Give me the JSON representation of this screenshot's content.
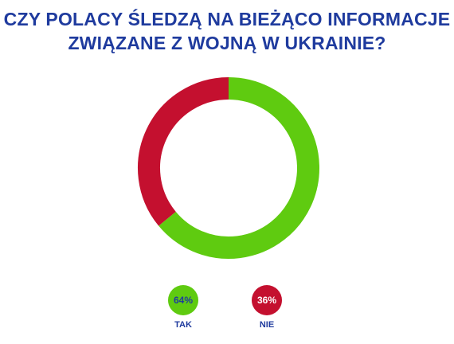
{
  "title": {
    "line1": "CZY POLACY ŚLEDZĄ NA BIEŻĄCO INFORMACJE",
    "line2": "ZWIĄZANE Z WOJNĄ W UKRAINIE?"
  },
  "colors": {
    "title": "#1f3b9e",
    "tak": "#5fcb10",
    "nie": "#c4102f",
    "tak_value_text": "#1f3b9e",
    "nie_value_text": "#ffffff"
  },
  "chart_data": {
    "type": "pie",
    "style": "donut",
    "title": "CZY POLACY ŚLEDZĄ NA BIEŻĄCO INFORMACJE ZWIĄZANE Z WOJNĄ W UKRAINIE?",
    "categories": [
      "TAK",
      "NIE"
    ],
    "values": [
      64,
      36
    ],
    "value_labels": [
      "64%",
      "36%"
    ],
    "colors": [
      "#5fcb10",
      "#c4102f"
    ],
    "start": "12 o'clock",
    "direction": "clockwise",
    "legend_position": "bottom"
  }
}
